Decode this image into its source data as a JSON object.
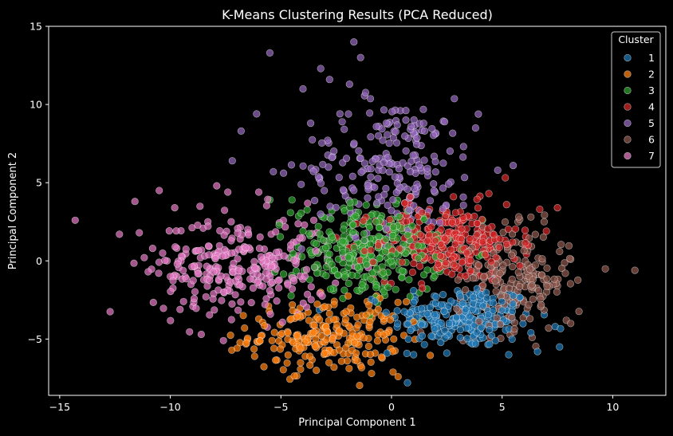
{
  "chart_data": {
    "type": "scatter",
    "title": "K-Means Clustering Results (PCA Reduced)",
    "xlabel": "Principal Component 1",
    "ylabel": "Principal Component 2",
    "xlim": [
      -15.5,
      12.4
    ],
    "ylim": [
      -8.6,
      15
    ],
    "xticks": [
      -15,
      -10,
      -5,
      0,
      5,
      10
    ],
    "yticks": [
      -5,
      0,
      5,
      10,
      15
    ],
    "grid": false,
    "legend": {
      "title": "Cluster",
      "placement": "top-right"
    },
    "background": "#000000",
    "series": [
      {
        "name": "1",
        "color": "#1f77b4",
        "centroid": [
          3.2,
          -3.6
        ],
        "spread": [
          1.6,
          1.0
        ],
        "count": 230,
        "points": [
          [
            7.6,
            -5.5
          ],
          [
            6.6,
            -5.8
          ],
          [
            5.3,
            -6.0
          ],
          [
            3.8,
            -5.3
          ],
          [
            2.5,
            -5.9
          ],
          [
            1.0,
            -6.0
          ],
          [
            -0.2,
            -5.9
          ],
          [
            1.0,
            -1.9
          ],
          [
            7.4,
            -4.2
          ],
          [
            6.3,
            -4.6
          ],
          [
            4.7,
            -5.1
          ],
          [
            3.6,
            -2.5
          ],
          [
            2.0,
            -2.7
          ],
          [
            5.2,
            -2.9
          ]
        ]
      },
      {
        "name": "2",
        "color": "#ff7f0e",
        "centroid": [
          -3.0,
          -4.8
        ],
        "spread": [
          1.7,
          1.1
        ],
        "count": 220,
        "points": [
          [
            -5.4,
            -5.1
          ],
          [
            -3.4,
            -7.0
          ],
          [
            -2.6,
            -6.8
          ],
          [
            -1.4,
            -6.7
          ],
          [
            0.3,
            -7.4
          ],
          [
            -0.9,
            -7.2
          ],
          [
            -2.0,
            -6.4
          ],
          [
            -1.1,
            -2.6
          ],
          [
            -3.1,
            -3.0
          ],
          [
            -5.9,
            -4.8
          ],
          [
            -3.9,
            -6.1
          ],
          [
            -1.6,
            -5.9
          ],
          [
            0.1,
            -5.0
          ],
          [
            -0.6,
            -3.1
          ]
        ]
      },
      {
        "name": "3",
        "color": "#2ca02c",
        "centroid": [
          -1.0,
          0.6
        ],
        "spread": [
          1.7,
          1.5
        ],
        "count": 290,
        "points": [
          [
            -4.5,
            3.9
          ],
          [
            -5.5,
            3.9
          ],
          [
            -2.7,
            3.2
          ],
          [
            0.0,
            2.4
          ],
          [
            1.2,
            1.8
          ],
          [
            1.9,
            -0.6
          ],
          [
            1.6,
            -1.8
          ],
          [
            -3.7,
            -1.2
          ],
          [
            -4.0,
            1.9
          ],
          [
            -0.3,
            -1.5
          ],
          [
            -2.2,
            -2.4
          ],
          [
            0.7,
            1.0
          ],
          [
            -1.5,
            3.1
          ],
          [
            2.3,
            0.1
          ]
        ]
      },
      {
        "name": "4",
        "color": "#d62728",
        "centroid": [
          2.5,
          1.2
        ],
        "spread": [
          1.6,
          1.2
        ],
        "count": 280,
        "points": [
          [
            0.6,
            3.7
          ],
          [
            2.8,
            4.1
          ],
          [
            4.4,
            4.3
          ],
          [
            5.2,
            3.6
          ],
          [
            6.7,
            3.3
          ],
          [
            7.5,
            3.4
          ],
          [
            7.0,
            1.9
          ],
          [
            5.8,
            -0.3
          ],
          [
            4.1,
            -1.6
          ],
          [
            2.2,
            -0.4
          ],
          [
            0.8,
            1.5
          ],
          [
            3.1,
            2.6
          ],
          [
            4.9,
            1.4
          ],
          [
            1.6,
            2.9
          ]
        ]
      },
      {
        "name": "5",
        "color": "#9467bd",
        "centroid": [
          0.0,
          6.0
        ],
        "spread": [
          2.0,
          2.2
        ],
        "count": 220,
        "points": [
          [
            -5.5,
            13.3
          ],
          [
            -1.7,
            14.0
          ],
          [
            -1.4,
            13.0
          ],
          [
            -3.2,
            12.3
          ],
          [
            -4.0,
            11.0
          ],
          [
            -6.1,
            9.4
          ],
          [
            -6.8,
            8.3
          ],
          [
            -1.9,
            11.3
          ],
          [
            2.4,
            8.9
          ],
          [
            3.8,
            8.5
          ],
          [
            5.5,
            6.1
          ],
          [
            4.8,
            5.8
          ],
          [
            -7.2,
            6.4
          ],
          [
            -2.8,
            11.6
          ],
          [
            0.4,
            9.6
          ],
          [
            1.5,
            8.3
          ]
        ]
      },
      {
        "name": "6",
        "color": "#8c564b",
        "centroid": [
          5.5,
          -1.2
        ],
        "spread": [
          1.3,
          1.6
        ],
        "count": 190,
        "points": [
          [
            11.0,
            -0.6
          ],
          [
            8.1,
            0.1
          ],
          [
            7.6,
            0.6
          ],
          [
            7.5,
            -1.6
          ],
          [
            7.9,
            -3.8
          ],
          [
            8.1,
            -4.0
          ],
          [
            6.9,
            2.5
          ],
          [
            6.3,
            2.8
          ],
          [
            7.1,
            -4.3
          ],
          [
            6.2,
            -2.8
          ],
          [
            5.9,
            1.1
          ],
          [
            6.8,
            -0.9
          ]
        ]
      },
      {
        "name": "7",
        "color": "#e377c2",
        "centroid": [
          -6.8,
          -0.3
        ],
        "spread": [
          2.0,
          1.6
        ],
        "count": 270,
        "points": [
          [
            -14.3,
            2.6
          ],
          [
            -12.3,
            1.7
          ],
          [
            -11.6,
            3.8
          ],
          [
            -11.0,
            -0.7
          ],
          [
            -10.5,
            4.5
          ],
          [
            -11.4,
            1.8
          ],
          [
            -10.0,
            -1.0
          ],
          [
            -7.9,
            4.8
          ],
          [
            -7.4,
            4.4
          ],
          [
            -6.0,
            4.4
          ],
          [
            -8.6,
            -4.7
          ],
          [
            -7.6,
            -5.1
          ],
          [
            -9.8,
            3.4
          ],
          [
            -10.8,
            0.8
          ],
          [
            -9.4,
            -2.6
          ],
          [
            -8.3,
            2.5
          ]
        ]
      }
    ]
  }
}
